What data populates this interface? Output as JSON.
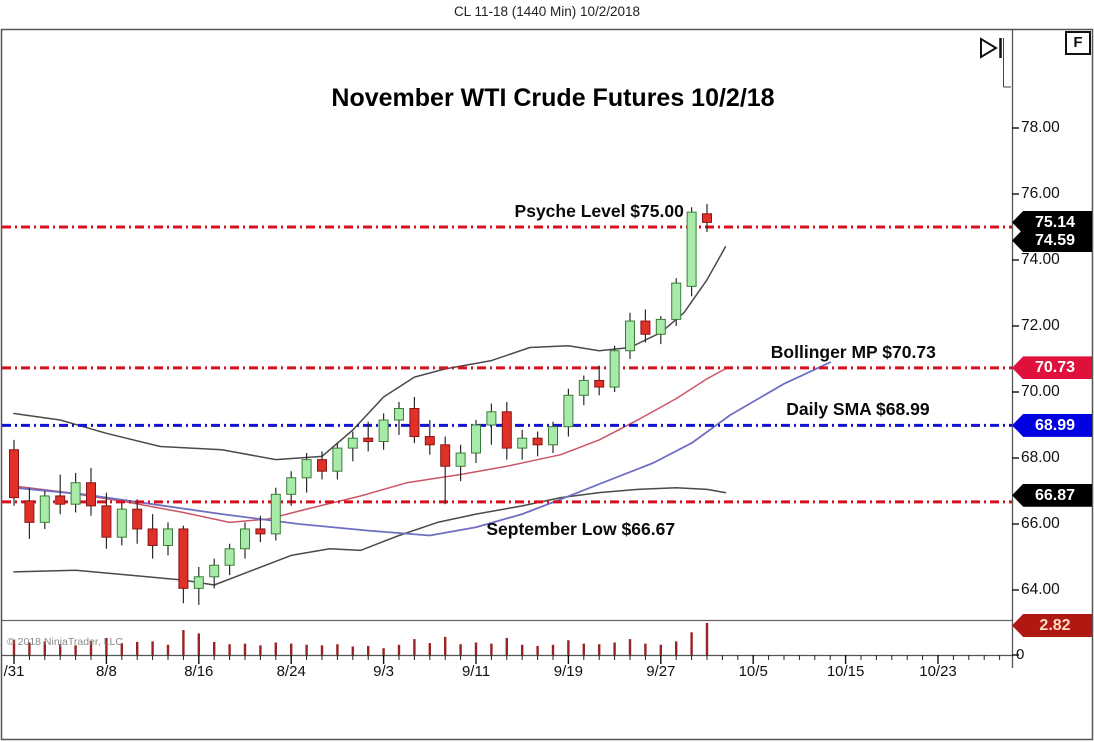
{
  "window": {
    "title": "CL 11-18 (1440 Min)  10/2/2018"
  },
  "toolbar": {
    "fit_button_label": "F",
    "replay_icon": "step-forward-icon"
  },
  "watermark": "© 2018 NinjaTrader, LLC",
  "chart_data": {
    "type": "candlestick",
    "title": "November WTI Crude Futures 10/2/18",
    "instrument": "CL 11-18 (Crude Oil Nov 2018, 1440 Min bars)",
    "legend_position": "none",
    "grid": false,
    "y_axis": {
      "ticks": [
        "78.00",
        "76.00",
        "74.00",
        "72.00",
        "70.00",
        "68.00",
        "66.00",
        "64.00"
      ],
      "tick_values": [
        78,
        76,
        74,
        72,
        70,
        68,
        66,
        64
      ],
      "range": [
        63.2,
        79.6
      ],
      "volume_zero_label": "0"
    },
    "x_axis": {
      "labels": [
        {
          "text": "/31",
          "i": 0
        },
        {
          "text": "8/8",
          "i": 6
        },
        {
          "text": "8/16",
          "i": 12
        },
        {
          "text": "8/24",
          "i": 18
        },
        {
          "text": "9/3",
          "i": 24
        },
        {
          "text": "9/11",
          "i": 30
        },
        {
          "text": "9/19",
          "i": 36
        },
        {
          "text": "9/27",
          "i": 42
        },
        {
          "text": "10/5",
          "i": 48
        },
        {
          "text": "10/15",
          "i": 54
        },
        {
          "text": "10/23",
          "i": 60
        }
      ]
    },
    "levels": [
      {
        "name": "psyche-level",
        "label": "Psyche Level $75.00",
        "value": 75.0,
        "color": "#d8101e",
        "style": "dashdot",
        "label_i": 38,
        "label_side": "above"
      },
      {
        "name": "bollinger-mp",
        "label": "Bollinger MP $70.73",
        "value": 70.73,
        "color": "#d8101e",
        "style": "dashdot",
        "label_i": 54.5,
        "label_side": "above"
      },
      {
        "name": "daily-sma",
        "label": "Daily SMA $68.99",
        "value": 68.99,
        "color": "#1414d0",
        "style": "dashdot",
        "label_i": 54.8,
        "label_side": "above"
      },
      {
        "name": "september-low",
        "label": "September Low $66.67",
        "value": 66.67,
        "color": "#d8101e",
        "style": "dashdot",
        "label_i": 36.8,
        "label_side": "below"
      }
    ],
    "price_badges": [
      {
        "text": "75.14",
        "value": 75.14,
        "bg": "#000000",
        "fg": "#ffffff"
      },
      {
        "text": "74.59",
        "value": 74.59,
        "bg": "#000000",
        "fg": "#ffffff"
      },
      {
        "text": "70.73",
        "value": 70.73,
        "bg": "#e0103c",
        "fg": "#ffffff"
      },
      {
        "text": "68.99",
        "value": 68.99,
        "bg": "#0000e0",
        "fg": "#ffffff"
      },
      {
        "text": "66.87",
        "value": 66.87,
        "bg": "#000000",
        "fg": "#ffffff"
      }
    ],
    "volume_badge": {
      "text": "2.82",
      "value": 2.82,
      "bg": "#b01812",
      "fg": "#ffd9c4"
    },
    "series": {
      "candles": {
        "dates": [
          "7/31",
          "8/1",
          "8/2",
          "8/3",
          "8/6",
          "8/7",
          "8/8",
          "8/9",
          "8/10",
          "8/13",
          "8/14",
          "8/15",
          "8/16",
          "8/17",
          "8/20",
          "8/21",
          "8/22",
          "8/23",
          "8/24",
          "8/27",
          "8/28",
          "8/29",
          "8/30",
          "8/31",
          "9/3",
          "9/4",
          "9/5",
          "9/6",
          "9/7",
          "9/10",
          "9/11",
          "9/12",
          "9/13",
          "9/14",
          "9/17",
          "9/18",
          "9/19",
          "9/20",
          "9/21",
          "9/24",
          "9/25",
          "9/26",
          "9/27",
          "9/28",
          "10/1",
          "10/2"
        ],
        "open": [
          68.25,
          66.7,
          66.05,
          66.85,
          66.6,
          67.25,
          66.55,
          65.6,
          66.45,
          65.85,
          65.35,
          65.85,
          64.05,
          64.4,
          64.75,
          65.25,
          65.85,
          65.7,
          66.9,
          67.4,
          67.95,
          67.6,
          68.3,
          68.6,
          68.5,
          69.15,
          69.5,
          68.65,
          68.4,
          67.75,
          68.15,
          69.0,
          69.4,
          68.3,
          68.6,
          68.4,
          68.95,
          69.9,
          70.35,
          70.15,
          71.25,
          72.15,
          71.75,
          72.2,
          73.2,
          75.4
        ],
        "high": [
          68.55,
          67.1,
          67.0,
          67.5,
          67.55,
          67.7,
          66.95,
          66.65,
          66.75,
          66.3,
          66.05,
          65.95,
          64.7,
          64.95,
          65.4,
          66.05,
          66.25,
          67.1,
          67.6,
          68.15,
          68.2,
          68.45,
          68.8,
          69.1,
          69.35,
          69.7,
          69.85,
          69.15,
          68.65,
          68.4,
          69.15,
          69.65,
          69.7,
          68.85,
          68.8,
          69.1,
          70.1,
          70.5,
          70.8,
          71.4,
          72.4,
          72.5,
          72.3,
          73.45,
          75.6,
          75.7
        ],
        "low": [
          66.55,
          65.55,
          65.85,
          66.3,
          66.35,
          66.25,
          65.25,
          65.35,
          65.4,
          64.95,
          65.05,
          63.6,
          63.55,
          64.05,
          64.45,
          64.95,
          65.45,
          65.5,
          66.55,
          66.95,
          67.35,
          67.35,
          67.9,
          68.2,
          68.25,
          68.7,
          68.45,
          68.1,
          66.6,
          67.3,
          67.85,
          68.4,
          67.95,
          67.95,
          68.05,
          68.15,
          68.65,
          69.6,
          69.9,
          70.0,
          71.0,
          71.5,
          71.45,
          72.0,
          72.9,
          74.85
        ],
        "close": [
          66.8,
          66.05,
          66.85,
          66.6,
          67.25,
          66.55,
          65.6,
          66.45,
          65.85,
          65.35,
          65.85,
          64.05,
          64.4,
          64.75,
          65.25,
          65.85,
          65.7,
          66.9,
          67.4,
          67.95,
          67.6,
          68.3,
          68.6,
          68.5,
          69.15,
          69.5,
          68.65,
          68.4,
          67.75,
          68.15,
          69.0,
          69.4,
          68.3,
          68.6,
          68.4,
          68.95,
          69.9,
          70.35,
          70.15,
          71.25,
          72.15,
          71.75,
          72.2,
          73.3,
          75.45,
          75.14
        ]
      },
      "volume": [
        1.35,
        1.1,
        1.2,
        0.95,
        0.85,
        1.25,
        1.5,
        1.05,
        1.15,
        1.2,
        0.9,
        2.2,
        1.9,
        1.15,
        0.95,
        1.0,
        0.85,
        1.1,
        1.0,
        0.9,
        0.85,
        0.95,
        0.75,
        0.8,
        0.6,
        0.9,
        1.4,
        1.05,
        1.6,
        0.95,
        1.1,
        1.0,
        1.5,
        0.9,
        0.8,
        0.9,
        1.3,
        1.0,
        0.95,
        1.1,
        1.4,
        1.0,
        0.9,
        1.2,
        2.0,
        2.82
      ],
      "overlays": [
        {
          "name": "bollinger-upper-band",
          "color": "#4a4a4a",
          "width": 1.5,
          "points": [
            [
              0,
              69.35
            ],
            [
              3,
              69.15
            ],
            [
              6,
              68.75
            ],
            [
              9.5,
              68.35
            ],
            [
              13.5,
              68.25
            ],
            [
              17,
              67.95
            ],
            [
              20,
              68.05
            ],
            [
              22,
              68.85
            ],
            [
              24,
              69.85
            ],
            [
              26,
              70.45
            ],
            [
              28,
              70.7
            ],
            [
              31,
              70.95
            ],
            [
              33.5,
              71.35
            ],
            [
              36,
              71.4
            ],
            [
              38,
              71.25
            ],
            [
              40,
              71.35
            ],
            [
              42,
              71.8
            ],
            [
              43.5,
              72.4
            ],
            [
              45,
              73.4
            ],
            [
              46.2,
              74.4
            ]
          ]
        },
        {
          "name": "bollinger-lower-band",
          "color": "#4a4a4a",
          "width": 1.5,
          "points": [
            [
              0,
              64.55
            ],
            [
              4,
              64.6
            ],
            [
              7.5,
              64.45
            ],
            [
              11,
              64.3
            ],
            [
              13,
              64.15
            ],
            [
              15.5,
              64.6
            ],
            [
              18,
              65.05
            ],
            [
              20.5,
              65.25
            ],
            [
              22.5,
              65.2
            ],
            [
              25,
              65.65
            ],
            [
              27.5,
              66.05
            ],
            [
              30,
              66.3
            ],
            [
              33,
              66.55
            ],
            [
              35.5,
              66.8
            ],
            [
              38,
              66.95
            ],
            [
              40.5,
              67.05
            ],
            [
              43,
              67.1
            ],
            [
              45,
              67.05
            ],
            [
              46.2,
              66.95
            ]
          ]
        },
        {
          "name": "bollinger-midline-sma20",
          "color": "#cc5566",
          "width": 1.5,
          "points": [
            [
              0,
              67.15
            ],
            [
              3.5,
              66.95
            ],
            [
              7.5,
              66.65
            ],
            [
              11,
              66.35
            ],
            [
              14,
              66.05
            ],
            [
              16.5,
              66.15
            ],
            [
              19,
              66.45
            ],
            [
              22.5,
              66.85
            ],
            [
              25.5,
              67.25
            ],
            [
              29,
              67.5
            ],
            [
              32,
              67.75
            ],
            [
              35.5,
              68.1
            ],
            [
              38,
              68.55
            ],
            [
              40.5,
              69.15
            ],
            [
              43,
              69.8
            ],
            [
              45,
              70.4
            ],
            [
              46.3,
              70.73
            ]
          ]
        },
        {
          "name": "daily-sma-slow",
          "color": "#6f6fc2",
          "width": 1.8,
          "points": [
            [
              0,
              67.1
            ],
            [
              4.5,
              66.9
            ],
            [
              9,
              66.6
            ],
            [
              13.5,
              66.3
            ],
            [
              18.5,
              66.0
            ],
            [
              23,
              65.8
            ],
            [
              27,
              65.65
            ],
            [
              30,
              65.9
            ],
            [
              33,
              66.3
            ],
            [
              35.5,
              66.75
            ],
            [
              38.5,
              67.3
            ],
            [
              41.5,
              67.85
            ],
            [
              44,
              68.45
            ],
            [
              46.5,
              69.3
            ],
            [
              50,
              70.25
            ],
            [
              53,
              70.9
            ]
          ]
        }
      ]
    },
    "colors": {
      "up_fill": "#a8eba8",
      "up_stroke": "#3a7d3a",
      "down_fill": "#e03028",
      "down_stroke": "#8b1515",
      "wick": "#2a2a2a",
      "volume_bar": "#992222",
      "frame": "#555555",
      "axis_text": "#111111"
    }
  }
}
